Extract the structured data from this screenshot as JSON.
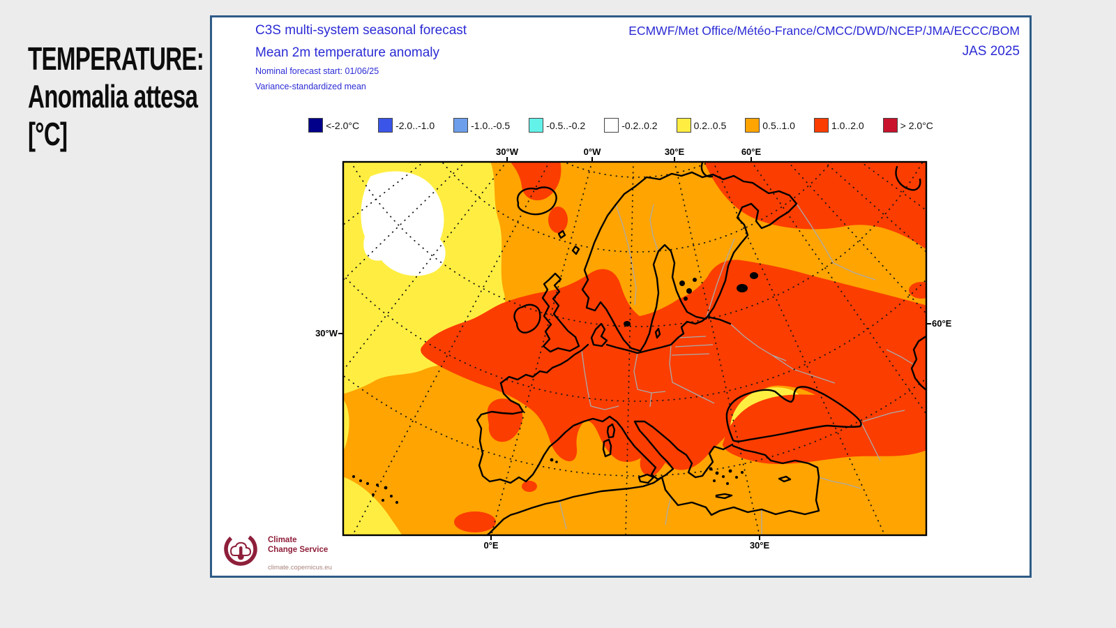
{
  "side_label": {
    "line1": "TEMPERATURE:",
    "line2": "Anomalia attesa",
    "line3": "[°C]"
  },
  "panel": {
    "border_color": "#2e5b86",
    "header": {
      "title_line1": "C3S multi-system seasonal forecast",
      "title_line2": "Mean 2m temperature anomaly",
      "subtitle_line1": "Nominal forecast start: 01/06/25",
      "subtitle_line2": "Variance-standardized mean",
      "models": "ECMWF/Met Office/Météo-France/CMCC/DWD/NCEP/JMA/ECCC/BOM",
      "season": "JAS 2025",
      "text_color": "#2b2bd5"
    },
    "legend": {
      "entries": [
        {
          "label": "<-2.0°C",
          "color": "#00008B"
        },
        {
          "label": "-2.0..-1.0",
          "color": "#3A55E8"
        },
        {
          "label": "-1.0..-0.5",
          "color": "#6D9EEB"
        },
        {
          "label": "-0.5..-0.2",
          "color": "#63F2E9"
        },
        {
          "label": "-0.2..0.2",
          "color": "#FFFFFF"
        },
        {
          "label": "0.2..0.5",
          "color": "#FFEE41"
        },
        {
          "label": "0.5..1.0",
          "color": "#FFA400"
        },
        {
          "label": "1.0..2.0",
          "color": "#FB3D00"
        },
        {
          "label": "> 2.0°C",
          "color": "#C9132C"
        }
      ]
    },
    "map": {
      "axis": {
        "top": [
          "30°W",
          "0°W",
          "30°E",
          "60°E"
        ],
        "bottom": [
          "0°E",
          "30°E"
        ],
        "left": "30°W",
        "right": "60°E"
      },
      "colors": {
        "orange": "#FFA400",
        "red": "#FB3D00",
        "yellow": "#FFEE41",
        "white": "#FFFFFF",
        "coast": "#000000",
        "border": "#ABABAB"
      }
    },
    "logo": {
      "line1": "Climate",
      "line2": "Change Service",
      "url": "climate.copernicus.eu",
      "color": "#8e1f3a"
    }
  }
}
